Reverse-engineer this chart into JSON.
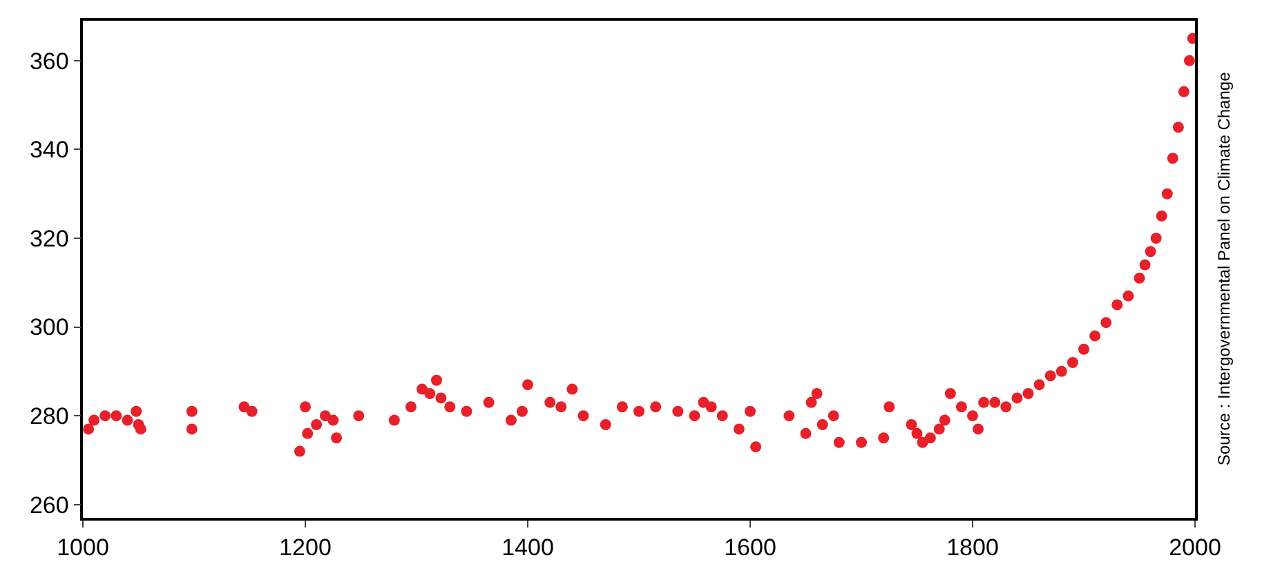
{
  "chart_data": {
    "type": "scatter",
    "marker": "circle",
    "grid": false,
    "legend": false,
    "xlim": [
      1000,
      2000
    ],
    "xticks": [
      1000,
      1200,
      1400,
      1600,
      1800,
      2000
    ],
    "ylim": [
      257,
      369
    ],
    "yticks": [
      260,
      280,
      300,
      320,
      340,
      360
    ],
    "annotations": [
      "Source : Intergovernmental Panel on Climate Change"
    ],
    "series": [
      {
        "color": "#e8202a",
        "x": [
          1005,
          1010,
          1020,
          1030,
          1040,
          1048,
          1050,
          1052,
          1098,
          1098,
          1145,
          1152,
          1195,
          1200,
          1202,
          1210,
          1218,
          1225,
          1228,
          1248,
          1280,
          1295,
          1305,
          1312,
          1318,
          1322,
          1330,
          1345,
          1365,
          1385,
          1395,
          1400,
          1420,
          1430,
          1440,
          1450,
          1470,
          1485,
          1500,
          1515,
          1535,
          1550,
          1558,
          1565,
          1575,
          1590,
          1600,
          1605,
          1635,
          1650,
          1655,
          1660,
          1665,
          1675,
          1680,
          1700,
          1720,
          1725,
          1745,
          1750,
          1755,
          1762,
          1770,
          1775,
          1780,
          1790,
          1800,
          1805,
          1810,
          1820,
          1830,
          1840,
          1850,
          1860,
          1870,
          1880,
          1890,
          1900,
          1910,
          1920,
          1930,
          1940,
          1950,
          1955,
          1960,
          1965,
          1970,
          1975,
          1980,
          1985,
          1990,
          1995,
          1998
        ],
        "values": [
          277,
          279,
          280,
          280,
          279,
          281,
          278,
          277,
          281,
          277,
          282,
          281,
          272,
          282,
          276,
          278,
          280,
          279,
          275,
          280,
          279,
          282,
          286,
          285,
          288,
          284,
          282,
          281,
          283,
          279,
          281,
          287,
          283,
          282,
          286,
          280,
          278,
          282,
          281,
          282,
          281,
          280,
          283,
          282,
          280,
          277,
          281,
          273,
          280,
          276,
          283,
          285,
          278,
          280,
          274,
          274,
          275,
          282,
          278,
          276,
          274,
          275,
          277,
          279,
          285,
          282,
          280,
          277,
          283,
          283,
          282,
          284,
          285,
          287,
          289,
          290,
          292,
          295,
          298,
          301,
          305,
          307,
          311,
          314,
          317,
          320,
          325,
          330,
          338,
          345,
          353,
          360,
          365
        ]
      }
    ]
  }
}
